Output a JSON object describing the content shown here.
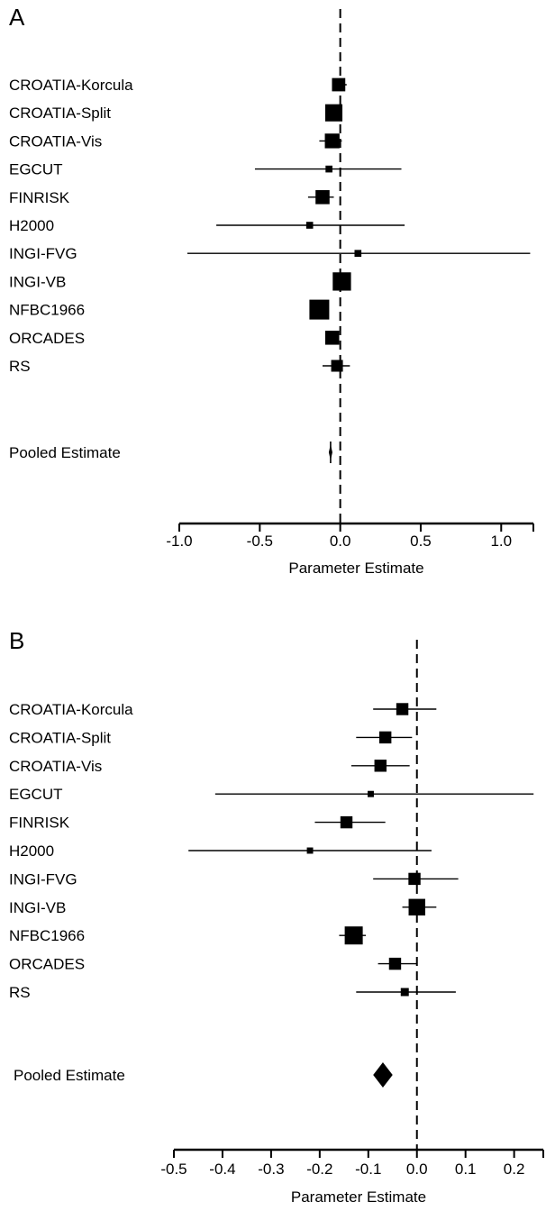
{
  "chart_data": [
    {
      "panel": "A",
      "type": "forest",
      "xlabel": "Parameter Estimate",
      "xlim": [
        -1.0,
        1.2
      ],
      "ticks": [
        -1.0,
        -0.5,
        0.0,
        0.5,
        1.0
      ],
      "tick_labels": [
        "-1.0",
        "-0.5",
        "0.0",
        "0.5",
        "1.0"
      ],
      "reference_line": 0,
      "studies": [
        {
          "label": "CROATIA-Korcula",
          "estimate": -0.01,
          "lower": -0.05,
          "upper": 0.04,
          "weight": 0.45
        },
        {
          "label": "CROATIA-Split",
          "estimate": -0.04,
          "lower": -0.08,
          "upper": 0.01,
          "weight": 0.75
        },
        {
          "label": "CROATIA-Vis",
          "estimate": -0.05,
          "lower": -0.13,
          "upper": 0.01,
          "weight": 0.55
        },
        {
          "label": "EGCUT",
          "estimate": -0.07,
          "lower": -0.53,
          "upper": 0.38,
          "weight": 0.12
        },
        {
          "label": "FINRISK",
          "estimate": -0.11,
          "lower": -0.2,
          "upper": -0.04,
          "weight": 0.5
        },
        {
          "label": "H2000",
          "estimate": -0.19,
          "lower": -0.77,
          "upper": 0.4,
          "weight": 0.12
        },
        {
          "label": "INGI-FVG",
          "estimate": 0.11,
          "lower": -0.95,
          "upper": 1.18,
          "weight": 0.12
        },
        {
          "label": "INGI-VB",
          "estimate": 0.01,
          "lower": -0.03,
          "upper": 0.05,
          "weight": 0.85
        },
        {
          "label": "NFBC1966",
          "estimate": -0.13,
          "lower": -0.18,
          "upper": -0.08,
          "weight": 1.0
        },
        {
          "label": "ORCADES",
          "estimate": -0.05,
          "lower": -0.09,
          "upper": -0.01,
          "weight": 0.5
        },
        {
          "label": "RS",
          "estimate": -0.02,
          "lower": -0.11,
          "upper": 0.06,
          "weight": 0.35
        }
      ],
      "pooled": {
        "label": "Pooled Estimate",
        "estimate": -0.06,
        "lower": -0.07,
        "upper": -0.05
      }
    },
    {
      "panel": "B",
      "type": "forest",
      "xlabel": "Parameter Estimate",
      "xlim": [
        -0.5,
        0.26
      ],
      "ticks": [
        -0.5,
        -0.4,
        -0.3,
        -0.2,
        -0.1,
        0.0,
        0.1,
        0.2
      ],
      "tick_labels": [
        "-0.5",
        "-0.4",
        "-0.3",
        "-0.2",
        "-0.1",
        "0.0",
        "0.1",
        "0.2"
      ],
      "reference_line": 0,
      "studies": [
        {
          "label": "CROATIA-Korcula",
          "estimate": -0.03,
          "lower": -0.09,
          "upper": 0.04,
          "weight": 0.45
        },
        {
          "label": "CROATIA-Split",
          "estimate": -0.065,
          "lower": -0.125,
          "upper": -0.01,
          "weight": 0.45
        },
        {
          "label": "CROATIA-Vis",
          "estimate": -0.075,
          "lower": -0.135,
          "upper": -0.015,
          "weight": 0.45
        },
        {
          "label": "EGCUT",
          "estimate": -0.095,
          "lower": -0.415,
          "upper": 0.24,
          "weight": 0.12
        },
        {
          "label": "FINRISK",
          "estimate": -0.145,
          "lower": -0.21,
          "upper": -0.065,
          "weight": 0.45
        },
        {
          "label": "H2000",
          "estimate": -0.22,
          "lower": -0.47,
          "upper": 0.03,
          "weight": 0.12
        },
        {
          "label": "INGI-FVG",
          "estimate": -0.005,
          "lower": -0.09,
          "upper": 0.085,
          "weight": 0.45
        },
        {
          "label": "INGI-VB",
          "estimate": 0.0,
          "lower": -0.03,
          "upper": 0.04,
          "weight": 0.85
        },
        {
          "label": "NFBC1966",
          "estimate": -0.13,
          "lower": -0.16,
          "upper": -0.105,
          "weight": 1.0
        },
        {
          "label": "ORCADES",
          "estimate": -0.045,
          "lower": -0.08,
          "upper": 0.0,
          "weight": 0.45
        },
        {
          "label": "RS",
          "estimate": -0.025,
          "lower": -0.125,
          "upper": 0.08,
          "weight": 0.2
        }
      ],
      "pooled": {
        "label": "Pooled Estimate",
        "estimate": -0.07,
        "lower": -0.09,
        "upper": -0.05
      }
    }
  ]
}
